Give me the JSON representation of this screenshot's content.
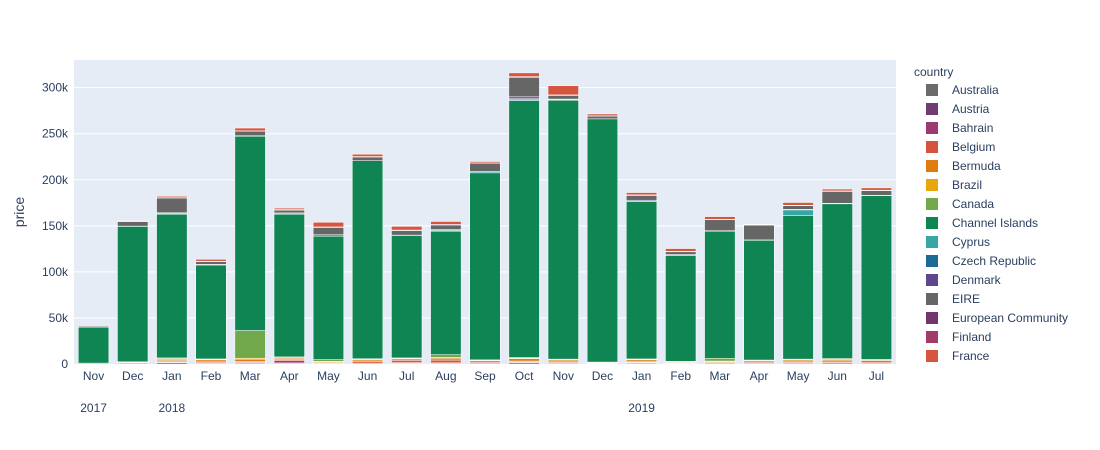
{
  "chart_data": {
    "type": "bar",
    "barmode": "stack",
    "ylabel": "price",
    "ylim": [
      0,
      330000
    ],
    "yticks": [
      0,
      50000,
      100000,
      150000,
      200000,
      250000,
      300000
    ],
    "ytick_labels": [
      "0",
      "50k",
      "100k",
      "150k",
      "200k",
      "250k",
      "300k"
    ],
    "grid": true,
    "legend": {
      "title": "country",
      "position": "right"
    },
    "categories": [
      "Nov 2017",
      "Dec 2017",
      "Jan 2018",
      "Feb 2018",
      "Mar 2018",
      "Apr 2018",
      "May 2018",
      "Jun 2018",
      "Jul 2018",
      "Aug 2018",
      "Sep 2018",
      "Oct 2018",
      "Nov 2018",
      "Dec 2018",
      "Jan 2019",
      "Feb 2019",
      "Mar 2019",
      "Apr 2019",
      "May 2019",
      "Jun 2019",
      "Jul 2019"
    ],
    "x_month_labels": [
      "Nov",
      "Dec",
      "Jan",
      "Feb",
      "Mar",
      "Apr",
      "May",
      "Jun",
      "Jul",
      "Aug",
      "Sep",
      "Oct",
      "Nov",
      "Dec",
      "Jan",
      "Feb",
      "Mar",
      "Apr",
      "May",
      "Jun",
      "Jul"
    ],
    "x_year_labels": [
      {
        "at": "Nov 2017",
        "label": "2017"
      },
      {
        "at": "Jan 2018",
        "label": "2018"
      },
      {
        "at": "Jan 2019",
        "label": "2019"
      }
    ],
    "series": [
      {
        "name": "Australia",
        "color": "#6b6b6b",
        "values": [
          0,
          1000,
          1500,
          800,
          1000,
          800,
          600,
          900,
          700,
          800,
          1000,
          1500,
          900,
          500,
          1000,
          600,
          1000,
          800,
          1000,
          1200,
          900
        ]
      },
      {
        "name": "Austria",
        "color": "#6f3d74",
        "values": [
          0,
          0,
          600,
          300,
          0,
          400,
          0,
          0,
          300,
          500,
          0,
          0,
          400,
          0,
          500,
          0,
          0,
          0,
          300,
          0,
          0
        ]
      },
      {
        "name": "Bahrain",
        "color": "#9c3970",
        "values": [
          0,
          0,
          500,
          400,
          800,
          2500,
          0,
          0,
          500,
          0,
          0,
          700,
          0,
          0,
          500,
          300,
          0,
          0,
          0,
          0,
          0
        ]
      },
      {
        "name": "Belgium",
        "color": "#d6543f",
        "values": [
          0,
          300,
          1000,
          1500,
          1000,
          1000,
          700,
          1500,
          2500,
          3000,
          1000,
          1000,
          1000,
          500,
          1000,
          500,
          700,
          1000,
          1000,
          1000,
          1000
        ]
      },
      {
        "name": "Bermuda",
        "color": "#e07b0f",
        "values": [
          0,
          300,
          1500,
          1500,
          2500,
          1500,
          1000,
          2000,
          1500,
          2000,
          1500,
          2500,
          2000,
          500,
          1500,
          800,
          1000,
          1500,
          2000,
          2000,
          2000
        ]
      },
      {
        "name": "Brazil",
        "color": "#e8a80c",
        "values": [
          0,
          300,
          500,
          500,
          1000,
          500,
          500,
          800,
          600,
          800,
          500,
          800,
          500,
          300,
          500,
          400,
          500,
          500,
          500,
          700,
          500
        ]
      },
      {
        "name": "Canada",
        "color": "#71a849",
        "values": [
          1000,
          500,
          1000,
          500,
          30000,
          1000,
          2000,
          500,
          500,
          3000,
          500,
          500,
          500,
          300,
          500,
          300,
          3000,
          500,
          500,
          1000,
          500
        ]
      },
      {
        "name": "Channel Islands",
        "color": "#0f8554",
        "values": [
          39000,
          147000,
          156000,
          102000,
          211000,
          155000,
          134000,
          215000,
          133000,
          134000,
          203000,
          279000,
          281000,
          264000,
          171000,
          115000,
          138000,
          130000,
          156000,
          168000,
          178000
        ]
      },
      {
        "name": "Cyprus",
        "color": "#38a6a5",
        "values": [
          0,
          300,
          500,
          200,
          500,
          300,
          1500,
          0,
          0,
          1000,
          1500,
          1500,
          500,
          0,
          0,
          300,
          500,
          400,
          6000,
          500,
          300
        ]
      },
      {
        "name": "Czech Republic",
        "color": "#1d6996",
        "values": [
          0,
          0,
          300,
          0,
          0,
          0,
          0,
          0,
          0,
          300,
          0,
          500,
          0,
          0,
          300,
          0,
          0,
          0,
          0,
          0,
          0
        ]
      },
      {
        "name": "Denmark",
        "color": "#5f4690",
        "values": [
          0,
          0,
          800,
          400,
          0,
          1000,
          0,
          0,
          300,
          500,
          0,
          2000,
          800,
          0,
          1000,
          600,
          0,
          0,
          500,
          0,
          0
        ]
      },
      {
        "name": "EIRE",
        "color": "#666666",
        "values": [
          1000,
          5000,
          16000,
          3000,
          5000,
          3000,
          8000,
          4000,
          5000,
          5000,
          9000,
          21000,
          4000,
          3000,
          5000,
          3000,
          12000,
          16000,
          4000,
          13000,
          5000
        ]
      },
      {
        "name": "European Community",
        "color": "#73356e",
        "values": [
          0,
          0,
          0,
          0,
          0,
          0,
          0,
          0,
          0,
          0,
          0,
          0,
          0,
          0,
          0,
          0,
          0,
          0,
          0,
          0,
          0
        ]
      },
      {
        "name": "Finland",
        "color": "#a33a67",
        "values": [
          0,
          200,
          300,
          500,
          300,
          700,
          500,
          500,
          500,
          800,
          300,
          1000,
          500,
          300,
          800,
          500,
          300,
          500,
          500,
          500,
          500
        ]
      },
      {
        "name": "France",
        "color": "#d5553e",
        "values": [
          0,
          500,
          1500,
          2000,
          3000,
          1500,
          5000,
          2500,
          4000,
          3000,
          1500,
          4000,
          10000,
          2000,
          2500,
          3000,
          3000,
          500,
          3000,
          2000,
          2500
        ]
      }
    ]
  }
}
